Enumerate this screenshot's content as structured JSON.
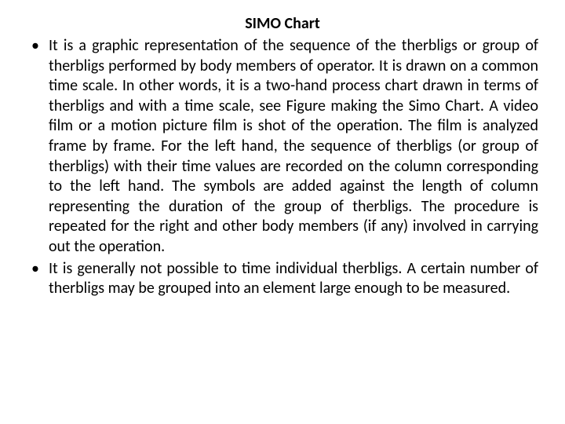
{
  "title": "SIMO Chart",
  "title_fontsize": 20,
  "title_fontweight": "bold",
  "title_color": "#000000",
  "body_fontsize": 20,
  "body_color": "#000000",
  "background_color": "#ffffff",
  "text_align": "justify",
  "bullets": [
    "It is a graphic representation of the sequence of the therbligs or group of therbligs performed by body members of operator. It is drawn on a common time scale. In other words, it is a two-hand process chart drawn in terms of therbligs and with a time scale, see Figure making the Simo Chart. A video film or a motion picture film is shot of the operation. The film is analyzed frame by frame. For the left hand, the sequence of therbligs (or group of therbligs) with their time values are recorded on the column corresponding to the left hand. The symbols are added against the length of column representing the duration of the group of therbligs. The procedure is repeated for the right and other body members (if any) involved in carrying out the operation.",
    "It is generally not possible to time individual therbligs. A certain number of therbligs may be grouped into an element large enough to be measured."
  ]
}
